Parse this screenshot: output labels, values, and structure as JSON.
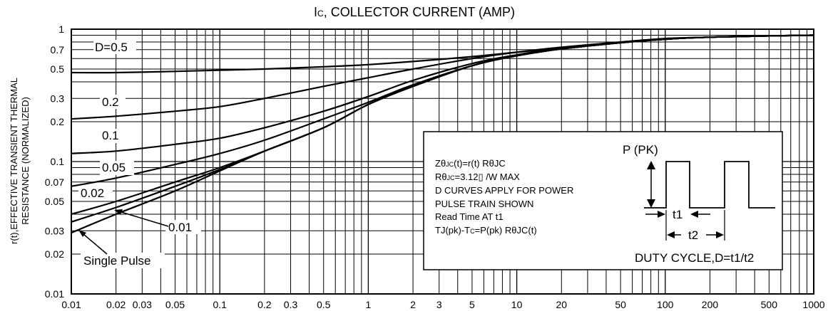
{
  "chart_data": {
    "type": "line",
    "title_main": "I",
    "title_sub": "C",
    "title_rest": ", COLLECTOR CURRENT (AMP)",
    "ylabel_line1": "r(t),EFFECTIVE TRANSIENT THERMAL",
    "ylabel_line2": "RESISTANCE (NORMALIZED)",
    "xscale": "log",
    "yscale": "log",
    "xlim": [
      0.01,
      1000
    ],
    "ylim": [
      0.01,
      1
    ],
    "grid": true,
    "x_ticks": [
      0.01,
      0.02,
      0.03,
      0.05,
      0.1,
      0.2,
      0.3,
      0.5,
      1,
      2,
      3,
      5,
      10,
      20,
      50,
      100,
      200,
      500,
      1000
    ],
    "x_tick_labels": [
      "0.01",
      "0.02",
      "0.03",
      "0.05",
      "0.1",
      "0.2",
      "0.3",
      "0.5",
      "1",
      "2",
      "3",
      "5",
      "10",
      "20",
      "50",
      "100",
      "200",
      "500",
      "1000"
    ],
    "y_ticks": [
      0.01,
      0.02,
      0.03,
      0.05,
      0.07,
      0.1,
      0.2,
      0.3,
      0.5,
      0.7,
      1
    ],
    "y_tick_labels": [
      "0.01",
      "0.02",
      "0.03",
      "0.05",
      "0.07",
      "0.1",
      "0.2",
      "0.3",
      "0.5",
      "0.7",
      "1"
    ],
    "series": [
      {
        "name": "D=0.5",
        "x": [
          0.01,
          0.02,
          0.05,
          0.1,
          0.2,
          0.5,
          1,
          2,
          5,
          10,
          20,
          50,
          100,
          200,
          500,
          1000
        ],
        "y": [
          0.47,
          0.47,
          0.48,
          0.49,
          0.5,
          0.52,
          0.54,
          0.57,
          0.62,
          0.67,
          0.72,
          0.79,
          0.84,
          0.87,
          0.89,
          0.9
        ]
      },
      {
        "name": "0.2",
        "x": [
          0.01,
          0.02,
          0.05,
          0.1,
          0.2,
          0.5,
          1,
          2,
          5,
          10,
          20,
          50,
          100,
          200,
          500,
          1000
        ],
        "y": [
          0.21,
          0.22,
          0.24,
          0.26,
          0.3,
          0.37,
          0.43,
          0.5,
          0.6,
          0.67,
          0.73,
          0.8,
          0.85,
          0.87,
          0.89,
          0.9
        ]
      },
      {
        "name": "0.1",
        "x": [
          0.01,
          0.02,
          0.05,
          0.1,
          0.2,
          0.5,
          1,
          2,
          5,
          10,
          20,
          50,
          100,
          200,
          500,
          1000
        ],
        "y": [
          0.115,
          0.12,
          0.135,
          0.15,
          0.18,
          0.24,
          0.31,
          0.41,
          0.55,
          0.64,
          0.72,
          0.79,
          0.84,
          0.87,
          0.89,
          0.9
        ]
      },
      {
        "name": "0.05",
        "x": [
          0.01,
          0.02,
          0.05,
          0.1,
          0.2,
          0.5,
          1,
          2,
          5,
          10,
          20,
          50,
          100,
          200,
          500,
          1000
        ],
        "y": [
          0.065,
          0.075,
          0.095,
          0.115,
          0.145,
          0.21,
          0.28,
          0.38,
          0.53,
          0.63,
          0.71,
          0.79,
          0.84,
          0.87,
          0.89,
          0.9
        ]
      },
      {
        "name": "0.02",
        "x": [
          0.01,
          0.02,
          0.05,
          0.1,
          0.2,
          0.5,
          1,
          2,
          5,
          10,
          20,
          50,
          100,
          200,
          500,
          1000
        ],
        "y": [
          0.04,
          0.05,
          0.07,
          0.09,
          0.12,
          0.18,
          0.27,
          0.37,
          0.53,
          0.63,
          0.71,
          0.79,
          0.84,
          0.87,
          0.89,
          0.9
        ]
      },
      {
        "name": "0.01",
        "x": [
          0.01,
          0.02,
          0.05,
          0.1,
          0.2,
          0.5,
          1,
          2,
          5,
          10,
          20,
          50,
          100,
          200,
          500,
          1000
        ],
        "y": [
          0.035,
          0.045,
          0.065,
          0.087,
          0.12,
          0.18,
          0.27,
          0.37,
          0.53,
          0.63,
          0.71,
          0.79,
          0.84,
          0.87,
          0.89,
          0.9
        ]
      },
      {
        "name": "Single Pulse",
        "x": [
          0.01,
          0.02,
          0.05,
          0.1,
          0.2,
          0.5,
          1,
          2,
          5,
          10,
          20,
          50,
          100,
          200,
          500,
          1000
        ],
        "y": [
          0.029,
          0.04,
          0.06,
          0.085,
          0.12,
          0.18,
          0.27,
          0.37,
          0.53,
          0.63,
          0.71,
          0.79,
          0.84,
          0.87,
          0.89,
          0.9
        ]
      }
    ],
    "curve_labels": [
      "D=0.5",
      "0.2",
      "0.1",
      "0.05",
      "0.02",
      "0.01",
      "Single Pulse"
    ],
    "annotations": {
      "z_line_a": "Zθ",
      "z_line_a_sub": "JC",
      "z_line_a_rest": "(t)=r(t) RθJC",
      "r_line_a": "Rθ",
      "r_line_a_sub": "JC",
      "r_line_a_rest": "=3.12▯  /W MAX",
      "line3": "D CURVES APPLY FOR POWER",
      "line4": "PULSE TRAIN SHOWN",
      "line5": "Read Time AT t1",
      "tj_a": "TJ(pk)-T",
      "tj_sub": "C",
      "tj_rest": "=P(pk) RθJC(t)",
      "ppk": "P (PK)",
      "t1": "t1",
      "t2": "t2",
      "duty": "DUTY CYCLE,D=t1/t2"
    }
  }
}
